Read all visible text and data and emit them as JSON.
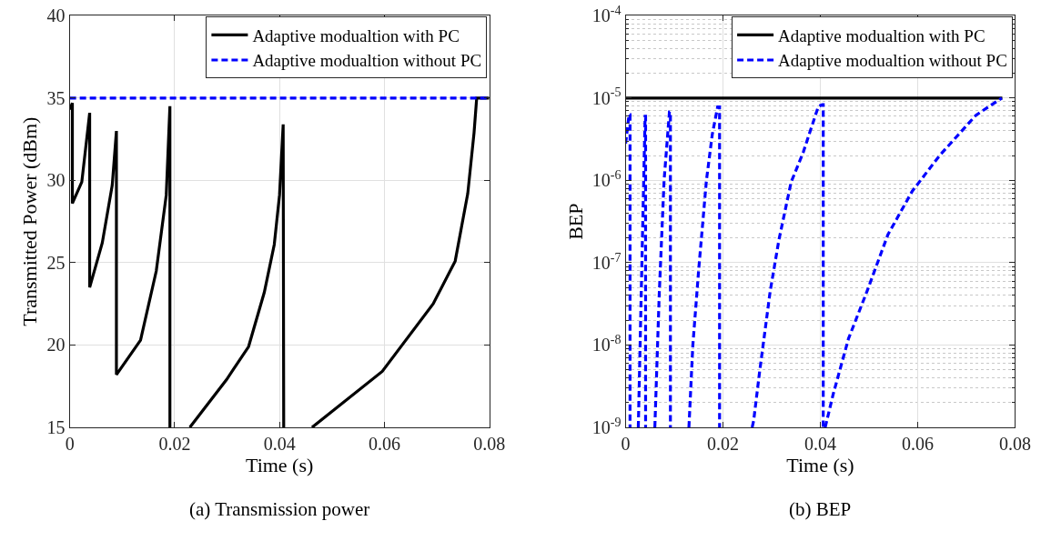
{
  "chart_data": [
    {
      "type": "line",
      "title": "(a) Transmission power",
      "xlabel": "Time (s)",
      "ylabel": "Transmitted Power (dBm)",
      "xlim": [
        0,
        0.08
      ],
      "xticks": [
        0,
        0.02,
        0.04,
        0.06,
        0.08
      ],
      "ylim": [
        15,
        40
      ],
      "yticks": [
        15,
        20,
        25,
        30,
        35,
        40
      ],
      "grid": true,
      "legend": "top right",
      "series": [
        {
          "name": "Adaptive modualtion with PC",
          "color": "#000000",
          "line_style": "solid",
          "x": [
            0,
            0.0005,
            0.0005,
            0.0023,
            0.0038,
            0.0038,
            0.0062,
            0.0081,
            0.0089,
            0.0089,
            0.0135,
            0.0165,
            0.0184,
            0.0191,
            0.0191,
            0.021,
            0.0229,
            0.0299,
            0.0341,
            0.0371,
            0.039,
            0.04,
            0.0407,
            0.0408,
            0.044,
            0.0462,
            0.0596,
            0.0693,
            0.0735,
            0.0759,
            0.0771,
            0.0776,
            0.08
          ],
          "values": [
            34.3,
            34.7,
            28.6,
            29.9,
            34.1,
            23.5,
            26.2,
            29.7,
            33.0,
            18.2,
            20.3,
            24.5,
            29.1,
            34.5,
            15,
            null,
            15,
            17.9,
            19.9,
            23.2,
            26.1,
            29.1,
            33.4,
            15,
            null,
            15,
            18.4,
            22.5,
            25.1,
            29.2,
            32.9,
            35,
            35
          ]
        },
        {
          "name": "Adaptive modualtion without PC",
          "color": "#0000ff",
          "line_style": "dashed",
          "x": [
            0,
            0.08
          ],
          "values": [
            35,
            35
          ]
        }
      ]
    },
    {
      "type": "line",
      "title": "(b) BEP",
      "xlabel": "Time (s)",
      "ylabel": "BEP",
      "log": "y",
      "xlim": [
        0,
        0.08
      ],
      "xticks": [
        0,
        0.02,
        0.04,
        0.06,
        0.08
      ],
      "ylim": [
        1e-09,
        0.0001
      ],
      "yticks": [
        {
          "value": 1e-09,
          "label": "10$^{-9}$"
        },
        {
          "value": 1e-08,
          "label": "10$^{-8}$"
        },
        {
          "value": 1e-07,
          "label": "10$^{-7}$"
        },
        {
          "value": 1e-06,
          "label": "10$^{-6}$"
        },
        {
          "value": 1e-05,
          "label": "10$^{-5}$"
        },
        {
          "value": 0.0001,
          "label": "10$^{-4}$"
        }
      ],
      "grid": true,
      "legend": "top right",
      "series": [
        {
          "name": "Adaptive modualtion with PC",
          "color": "#000000",
          "line_style": "solid",
          "x": [
            0,
            0.0774
          ],
          "values": [
            1e-05,
            1e-05
          ]
        },
        {
          "name": "Adaptive modualtion without PC",
          "color": "#0000ff",
          "line_style": "dashed",
          "x": [
            0,
            0.0007,
            0.0009,
            0.0009,
            0.0017,
            0.0026,
            0.004,
            0.0041,
            0.0041,
            0.005,
            0.006,
            0.0069,
            0.0079,
            0.009,
            0.0092,
            0.0092,
            0.011,
            0.013,
            0.0138,
            0.015,
            0.0166,
            0.0178,
            0.0189,
            0.0193,
            0.0193,
            0.022,
            0.026,
            0.0263,
            0.0275,
            0.0297,
            0.0315,
            0.034,
            0.0365,
            0.0396,
            0.0404,
            0.0406,
            0.0406,
            0.0408,
            0.041,
            0.0427,
            0.0458,
            0.0496,
            0.0539,
            0.0589,
            0.0645,
            0.072,
            0.0773
          ],
          "values": [
            2.8e-06,
            6.3e-06,
            6.3e-06,
            1e-09,
            null,
            1e-09,
            6e-06,
            6e-06,
            1e-09,
            null,
            1e-09,
            4.1e-08,
            1e-06,
            6.8e-06,
            6.8e-06,
            1e-09,
            null,
            1e-09,
            9.8e-09,
            8.1e-08,
            1e-06,
            3.6e-06,
            7.8e-06,
            7.8e-06,
            1e-09,
            null,
            1e-09,
            1.2e-09,
            4.6e-09,
            4.5e-08,
            1.9e-07,
            9.5e-07,
            2.2e-06,
            7.9e-06,
            8.3e-06,
            8.3e-06,
            1e-09,
            null,
            1e-09,
            2.6e-09,
            1.2e-08,
            4.5e-08,
            2.2e-07,
            7.4e-07,
            2e-06,
            6.2e-06,
            1e-05
          ]
        }
      ]
    }
  ]
}
